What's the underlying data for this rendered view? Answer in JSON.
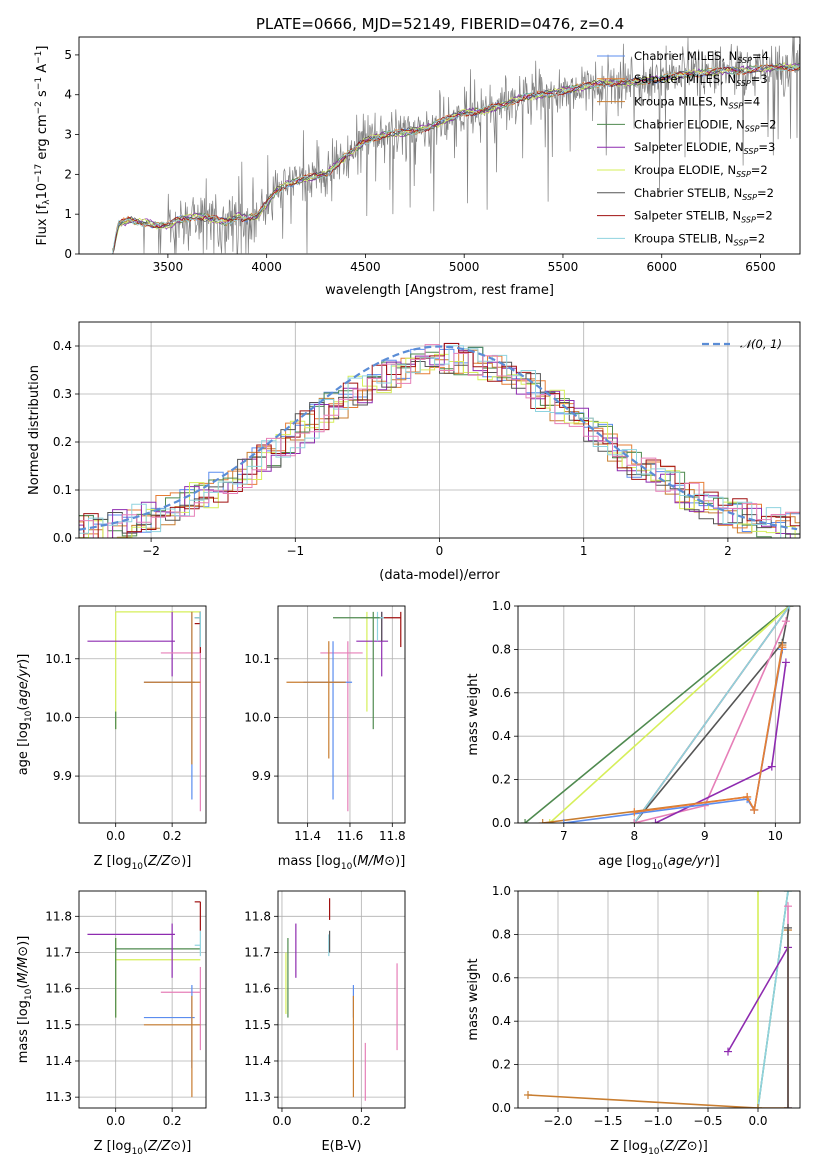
{
  "figure_title": "PLATE=0666, MJD=52149, FIBERID=0476, z=0.4",
  "colors": {
    "chabrier_miles": "#5b8def",
    "salpeter_miles": "#e67e35",
    "kroupa_miles": "#c87d30",
    "chabrier_elodie": "#4f8a4f",
    "salpeter_elodie": "#8e2bb0",
    "kroupa_elodie": "#d6ef5a",
    "chabrier_stelib": "#555555",
    "salpeter_stelib": "#a01010",
    "kroupa_stelib": "#8fd3df",
    "pink": "#e67fb8",
    "data": "#808080",
    "gaussian": "#5b8dd6",
    "grid": "#b0b0b0"
  },
  "chart_data": [
    {
      "id": "spectrum",
      "type": "line",
      "title": "PLATE=0666, MJD=52149, FIBERID=0476, z=0.4",
      "xlabel": "wavelength [Angstrom, rest frame]",
      "ylabel": "Flux [f",
      "ylabel_parts": [
        "Flux [f",
        "λ",
        "10",
        "−17",
        " erg cm",
        "−2",
        " s",
        "−1",
        " A",
        "−1",
        "]"
      ],
      "xlim": [
        3050,
        6700
      ],
      "ylim": [
        0,
        5.45
      ],
      "xticks": [
        3500,
        4000,
        4500,
        5000,
        5500,
        6000,
        6500
      ],
      "yticks": [
        0,
        1,
        2,
        3,
        4,
        5
      ],
      "grid": false,
      "legend_position": "top-right",
      "legend": [
        {
          "label": "Chabrier MILES, N",
          "sub": "SSP",
          "suffix": "=4",
          "color": "chabrier_miles"
        },
        {
          "label": "Salpeter MILES, N",
          "sub": "SSP",
          "suffix": "=3",
          "color": "salpeter_miles"
        },
        {
          "label": "Kroupa MILES, N",
          "sub": "SSP",
          "suffix": "=4",
          "color": "kroupa_miles"
        },
        {
          "label": "Chabrier ELODIE, N",
          "sub": "SSP",
          "suffix": "=2",
          "color": "chabrier_elodie"
        },
        {
          "label": "Salpeter ELODIE, N",
          "sub": "SSP",
          "suffix": "=3",
          "color": "salpeter_elodie"
        },
        {
          "label": "Kroupa ELODIE, N",
          "sub": "SSP",
          "suffix": "=2",
          "color": "kroupa_elodie"
        },
        {
          "label": "Chabrier STELIB, N",
          "sub": "SSP",
          "suffix": "=2",
          "color": "chabrier_stelib"
        },
        {
          "label": "Salpeter STELIB, N",
          "sub": "SSP",
          "suffix": "=2",
          "color": "salpeter_stelib"
        },
        {
          "label": "Kroupa STELIB, N",
          "sub": "SSP",
          "suffix": "=2",
          "color": "kroupa_stelib"
        }
      ],
      "model_x": [
        3220,
        3250,
        3300,
        3350,
        3400,
        3450,
        3500,
        3550,
        3600,
        3650,
        3700,
        3750,
        3800,
        3850,
        3900,
        3950,
        4000,
        4050,
        4100,
        4200,
        4300,
        4400,
        4500,
        4600,
        4700,
        4800,
        4900,
        5000,
        5100,
        5200,
        5300,
        5400,
        5500,
        5600,
        5700,
        5800,
        5900,
        6000,
        6100,
        6200,
        6300,
        6400,
        6500,
        6600,
        6700
      ],
      "model_y": [
        0.0,
        0.75,
        0.85,
        0.8,
        0.78,
        0.7,
        0.72,
        0.85,
        0.9,
        0.95,
        0.9,
        0.85,
        0.8,
        0.95,
        0.9,
        0.95,
        1.25,
        1.6,
        1.75,
        1.9,
        2.0,
        2.45,
        2.85,
        3.0,
        3.05,
        3.15,
        3.35,
        3.55,
        3.6,
        3.75,
        3.95,
        4.0,
        4.1,
        4.2,
        4.3,
        4.3,
        4.35,
        4.4,
        4.5,
        4.55,
        4.6,
        4.6,
        4.65,
        4.7,
        4.7
      ]
    },
    {
      "id": "residual-histogram",
      "type": "histogram",
      "xlabel": "(data-model)/error",
      "ylabel": "Normed distribution",
      "xlim": [
        -2.5,
        2.5
      ],
      "ylim": [
        0,
        0.45
      ],
      "xticks": [
        -2,
        -1,
        0,
        1,
        2
      ],
      "yticks": [
        0.0,
        0.1,
        0.2,
        0.3,
        0.4
      ],
      "grid": true,
      "legend_position": "top-right",
      "legend": [
        {
          "label": "𝒩(0, 1)",
          "style": "dashed",
          "color": "gaussian"
        }
      ],
      "gaussian": {
        "mean": 0,
        "sigma": 1
      }
    },
    {
      "id": "age-vs-Z",
      "type": "scatter",
      "xlabel": "Z [log10(Z/Z⊙)]",
      "ylabel": "age [log10(age/yr)]",
      "xlim": [
        -0.13,
        0.32
      ],
      "ylim": [
        9.82,
        10.19
      ],
      "xticks": [
        0.0,
        0.2
      ],
      "yticks": [
        9.9,
        10.0,
        10.1
      ],
      "grid": true,
      "crosses": [
        {
          "c": "kroupa_elodie",
          "x": [
            0.0,
            0.3
          ],
          "y": [
            9.98,
            10.18
          ],
          "cx": 0.0,
          "cy": 10.18
        },
        {
          "c": "salpeter_elodie",
          "x": [
            -0.1,
            0.21
          ],
          "y": [
            10.07,
            10.18
          ],
          "cx": 0.2,
          "cy": 10.13
        },
        {
          "c": "pink",
          "x": [
            0.16,
            0.3
          ],
          "y": [
            9.84,
            10.18
          ],
          "cx": 0.3,
          "cy": 10.11
        },
        {
          "c": "chabrier_miles",
          "x": [
            0.1,
            0.28
          ],
          "y": [
            9.86,
            10.18
          ],
          "cx": 0.27,
          "cy": 10.06
        },
        {
          "c": "kroupa_miles",
          "x": [
            0.1,
            0.3
          ],
          "y": [
            9.92,
            10.18
          ],
          "cx": 0.27,
          "cy": 10.06
        },
        {
          "c": "salpeter_stelib",
          "x": [
            0.28,
            0.3
          ],
          "y": [
            10.11,
            10.18
          ],
          "cx": 0.3,
          "cy": 10.16
        },
        {
          "c": "chabrier_stelib",
          "x": [
            0.28,
            0.3
          ],
          "y": [
            10.12,
            10.18
          ],
          "cx": 0.3,
          "cy": 10.17
        },
        {
          "c": "kroupa_stelib",
          "x": [
            0.28,
            0.3
          ],
          "y": [
            10.12,
            10.18
          ],
          "cx": 0.3,
          "cy": 10.17
        },
        {
          "c": "chabrier_elodie",
          "x": [
            0.0,
            0.0
          ],
          "y": [
            9.98,
            10.01
          ],
          "cx": 0.0,
          "cy": 10.0
        }
      ]
    },
    {
      "id": "age-vs-mass",
      "type": "scatter",
      "xlabel": "mass [log10(M/M⊙)]",
      "ylabel": "",
      "xlim": [
        11.26,
        11.86
      ],
      "ylim": [
        9.82,
        10.19
      ],
      "xticks": [
        11.4,
        11.6,
        11.8
      ],
      "yticks": [
        9.9,
        10.0,
        10.1
      ],
      "grid": true,
      "crosses": [
        {
          "c": "kroupa_elodie",
          "x": [
            11.65,
            11.75
          ],
          "y": [
            10.01,
            10.18
          ],
          "cx": 11.68,
          "cy": 10.17
        },
        {
          "c": "salpeter_elodie",
          "x": [
            11.63,
            11.78
          ],
          "y": [
            10.07,
            10.18
          ],
          "cx": 11.75,
          "cy": 10.13
        },
        {
          "c": "pink",
          "x": [
            11.46,
            11.66
          ],
          "y": [
            9.84,
            10.13
          ],
          "cx": 11.59,
          "cy": 10.11
        },
        {
          "c": "chabrier_miles",
          "x": [
            11.38,
            11.61
          ],
          "y": [
            9.86,
            10.13
          ],
          "cx": 11.52,
          "cy": 10.06
        },
        {
          "c": "kroupa_miles",
          "x": [
            11.3,
            11.58
          ],
          "y": [
            9.93,
            10.13
          ],
          "cx": 11.5,
          "cy": 10.06
        },
        {
          "c": "salpeter_stelib",
          "x": [
            11.76,
            11.84
          ],
          "y": [
            10.12,
            10.18
          ],
          "cx": 11.84,
          "cy": 10.17
        },
        {
          "c": "chabrier_stelib",
          "x": [
            11.74,
            11.76
          ],
          "y": [
            10.13,
            10.18
          ],
          "cx": 11.75,
          "cy": 10.17
        },
        {
          "c": "kroupa_stelib",
          "x": [
            11.7,
            11.76
          ],
          "y": [
            10.13,
            10.18
          ],
          "cx": 11.73,
          "cy": 10.17
        },
        {
          "c": "chabrier_elodie",
          "x": [
            11.52,
            11.74
          ],
          "y": [
            9.98,
            10.18
          ],
          "cx": 11.71,
          "cy": 10.17
        }
      ]
    },
    {
      "id": "mass-weight-vs-age",
      "type": "line",
      "xlabel": "age [log10(age/yr)]",
      "ylabel": "mass weight",
      "xlim": [
        6.35,
        10.35
      ],
      "ylim": [
        0,
        1
      ],
      "xticks": [
        7,
        8,
        9,
        10
      ],
      "yticks": [
        0.0,
        0.2,
        0.4,
        0.6,
        0.8,
        1.0
      ],
      "grid": true,
      "series": [
        {
          "c": "chabrier_elodie",
          "x": [
            6.45,
            10.2
          ],
          "y": [
            0.0,
            1.0
          ]
        },
        {
          "c": "kroupa_elodie",
          "x": [
            6.8,
            10.2
          ],
          "y": [
            0.0,
            1.0
          ]
        },
        {
          "c": "chabrier_stelib",
          "x": [
            8.0,
            10.1
          ],
          "y": [
            0.0,
            0.83
          ]
        },
        {
          "c": "chabrier_stelib",
          "x": [
            10.1,
            10.2
          ],
          "y": [
            0.83,
            1.0
          ]
        },
        {
          "c": "salpeter_stelib",
          "x": [
            8.0,
            10.2
          ],
          "y": [
            0.0,
            1.0
          ]
        },
        {
          "c": "kroupa_stelib",
          "x": [
            8.0,
            10.2
          ],
          "y": [
            0.0,
            1.0
          ]
        },
        {
          "c": "pink",
          "x": [
            8.0,
            9.0,
            10.15
          ],
          "y": [
            0.0,
            0.08,
            0.93
          ]
        },
        {
          "c": "salpeter_elodie",
          "x": [
            8.3,
            9.95,
            10.15
          ],
          "y": [
            0.0,
            0.26,
            0.74
          ]
        },
        {
          "c": "kroupa_miles",
          "x": [
            6.7,
            9.6,
            9.7,
            10.1
          ],
          "y": [
            0.0,
            0.12,
            0.06,
            0.82
          ]
        },
        {
          "c": "chabrier_miles",
          "x": [
            7.0,
            9.6,
            9.7,
            10.1
          ],
          "y": [
            0.0,
            0.11,
            0.06,
            0.8
          ]
        },
        {
          "c": "salpeter_miles",
          "x": [
            8.0,
            9.6,
            9.7,
            10.1
          ],
          "y": [
            0.05,
            0.12,
            0.06,
            0.81
          ]
        }
      ]
    },
    {
      "id": "mass-vs-Z",
      "type": "scatter",
      "xlabel": "Z [log10(Z/Z⊙)]",
      "ylabel": "mass [log10(M/M⊙)]",
      "xlim": [
        -0.13,
        0.32
      ],
      "ylim": [
        11.27,
        11.87
      ],
      "xticks": [
        0.0,
        0.2
      ],
      "yticks": [
        11.3,
        11.4,
        11.5,
        11.6,
        11.7,
        11.8
      ],
      "grid": true,
      "crosses": [
        {
          "c": "kroupa_elodie",
          "x": [
            0.0,
            0.3
          ],
          "y": [
            11.52,
            11.74
          ],
          "cx": 0.0,
          "cy": 11.68
        },
        {
          "c": "chabrier_elodie",
          "x": [
            0.0,
            0.3
          ],
          "y": [
            11.52,
            11.74
          ],
          "cx": 0.0,
          "cy": 11.71
        },
        {
          "c": "salpeter_elodie",
          "x": [
            -0.1,
            0.21
          ],
          "y": [
            11.63,
            11.78
          ],
          "cx": 0.2,
          "cy": 11.75
        },
        {
          "c": "pink",
          "x": [
            0.16,
            0.3
          ],
          "y": [
            11.43,
            11.66
          ],
          "cx": 0.3,
          "cy": 11.59
        },
        {
          "c": "chabrier_miles",
          "x": [
            0.1,
            0.28
          ],
          "y": [
            11.38,
            11.61
          ],
          "cx": 0.27,
          "cy": 11.52
        },
        {
          "c": "kroupa_miles",
          "x": [
            0.1,
            0.3
          ],
          "y": [
            11.3,
            11.58
          ],
          "cx": 0.27,
          "cy": 11.5
        },
        {
          "c": "salpeter_stelib",
          "x": [
            0.28,
            0.3
          ],
          "y": [
            11.76,
            11.84
          ],
          "cx": 0.3,
          "cy": 11.84
        },
        {
          "c": "kroupa_stelib",
          "x": [
            0.28,
            0.3
          ],
          "y": [
            11.69,
            11.76
          ],
          "cx": 0.3,
          "cy": 11.72
        }
      ]
    },
    {
      "id": "mass-vs-ebv",
      "type": "scatter",
      "xlabel": "E(B-V)",
      "ylabel": "",
      "xlim": [
        -0.01,
        0.31
      ],
      "ylim": [
        11.27,
        11.87
      ],
      "xticks": [
        0.0,
        0.2
      ],
      "yticks": [
        11.3,
        11.4,
        11.5,
        11.6,
        11.7,
        11.8
      ],
      "grid": true,
      "segments": [
        {
          "c": "kroupa_elodie",
          "x": 0.01,
          "y": [
            11.53,
            11.7
          ]
        },
        {
          "c": "chabrier_elodie",
          "x": 0.015,
          "y": [
            11.52,
            11.74
          ]
        },
        {
          "c": "salpeter_elodie",
          "x": 0.035,
          "y": [
            11.63,
            11.78
          ]
        },
        {
          "c": "salpeter_stelib",
          "x": 0.12,
          "y": [
            11.79,
            11.85
          ]
        },
        {
          "c": "kroupa_stelib",
          "x": 0.118,
          "y": [
            11.69,
            11.75
          ]
        },
        {
          "c": "chabrier_stelib",
          "x": 0.12,
          "y": [
            11.7,
            11.76
          ]
        },
        {
          "c": "chabrier_miles",
          "x": 0.18,
          "y": [
            11.52,
            11.61
          ]
        },
        {
          "c": "kroupa_miles",
          "x": 0.18,
          "y": [
            11.3,
            11.58
          ]
        },
        {
          "c": "pink",
          "x": 0.21,
          "y": [
            11.29,
            11.45
          ]
        },
        {
          "c": "pink",
          "x": 0.29,
          "y": [
            11.43,
            11.67
          ]
        }
      ]
    },
    {
      "id": "mass-weight-vs-Z",
      "type": "line",
      "xlabel": "Z [log10(Z/Z⊙)]",
      "ylabel": "mass weight",
      "xlim": [
        -2.4,
        0.42
      ],
      "ylim": [
        0,
        1
      ],
      "xticks": [
        -2.0,
        -1.5,
        -1.0,
        -0.5,
        0.0
      ],
      "yticks": [
        0.0,
        0.2,
        0.4,
        0.6,
        0.8,
        1.0
      ],
      "grid": true,
      "series": [
        {
          "c": "kroupa_elodie",
          "x": [
            0.0,
            0.0
          ],
          "y": [
            0.0,
            1.0
          ]
        },
        {
          "c": "chabrier_elodie",
          "x": [
            0.0,
            0.3
          ],
          "y": [
            0.0,
            1.0
          ]
        },
        {
          "c": "kroupa_stelib",
          "x": [
            0.0,
            0.3
          ],
          "y": [
            0.0,
            1.0
          ]
        },
        {
          "c": "salpeter_elodie",
          "x": [
            -0.3,
            0.3,
            0.3
          ],
          "y": [
            0.26,
            0.74,
            0.0
          ]
        },
        {
          "c": "pink",
          "x": [
            0.3,
            0.3
          ],
          "y": [
            0.0,
            0.93
          ]
        },
        {
          "c": "kroupa_miles",
          "x": [
            -2.3,
            0.0,
            0.3,
            0.3
          ],
          "y": [
            0.06,
            0.0,
            0.0,
            0.82
          ]
        },
        {
          "c": "chabrier_stelib",
          "x": [
            0.3,
            0.3
          ],
          "y": [
            0.0,
            0.83
          ]
        }
      ]
    }
  ]
}
